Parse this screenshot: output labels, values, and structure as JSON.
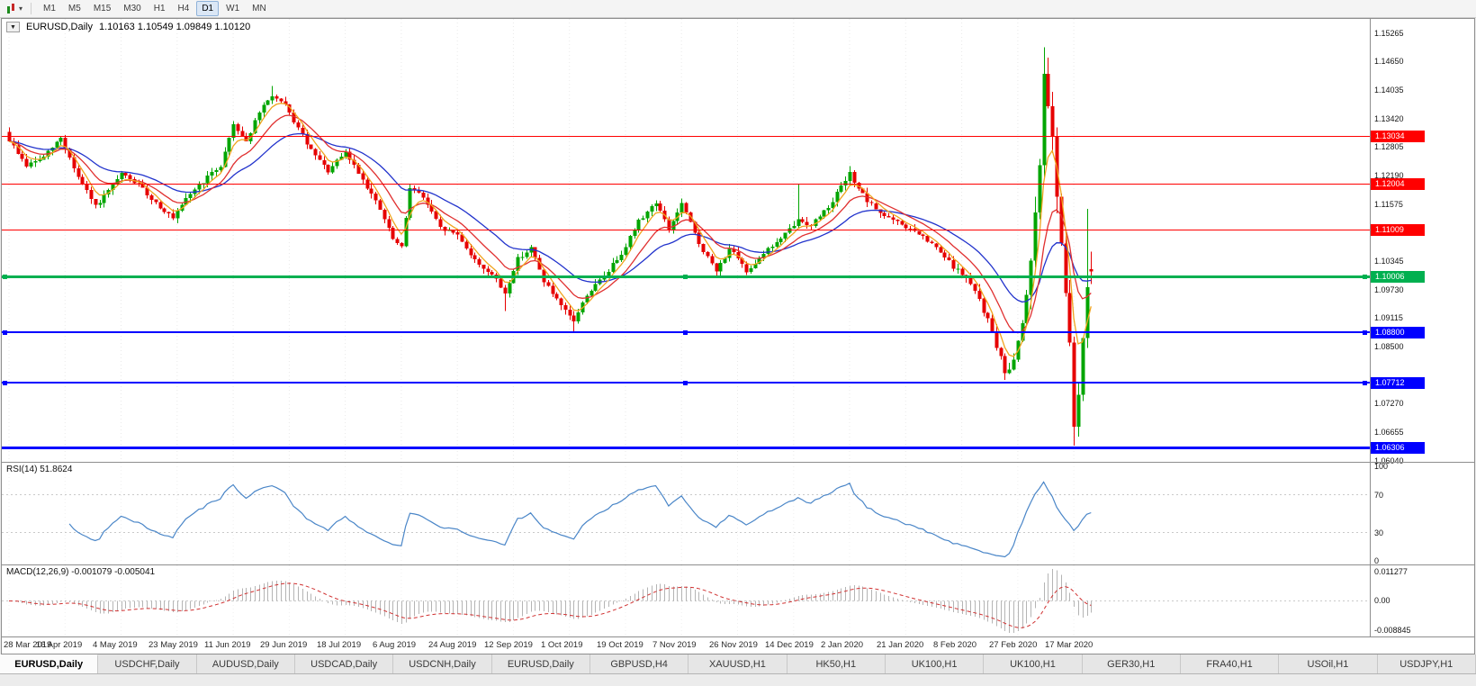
{
  "toolbar": {
    "chart_type_tooltip": "Candlesticks",
    "timeframes": [
      "M1",
      "M5",
      "M15",
      "M30",
      "H1",
      "H4",
      "D1",
      "W1",
      "MN"
    ],
    "active_timeframe": "D1"
  },
  "chart": {
    "title": "EURUSD,Daily",
    "ohlc": "1.10163 1.10549 1.09849 1.10120",
    "collapse_glyph": "▼",
    "colors": {
      "up": "#00a500",
      "down": "#e60000",
      "ma_fast": "#f0a41e",
      "ma_mid": "#e03030",
      "ma_slow": "#2233cc",
      "rsi": "#4a86c8",
      "macd_hist": "#b4b4b4",
      "macd_signal": "#d03030",
      "line_red": "#ff0000",
      "line_green": "#00b050",
      "line_blue": "#0000ff"
    }
  },
  "price_axis": {
    "ticks": [
      "1.15265",
      "1.14650",
      "1.14035",
      "1.13420",
      "1.12805",
      "1.12190",
      "1.11575",
      "1.10960",
      "1.10345",
      "1.09730",
      "1.09115",
      "1.08500",
      "1.07885",
      "1.07270",
      "1.06655",
      "1.06040"
    ]
  },
  "horizontal_lines": [
    {
      "label": "1.13034",
      "price": 1.13034,
      "color": "#ff0000",
      "thickness": 1,
      "selected": false
    },
    {
      "label": "1.12004",
      "price": 1.12004,
      "color": "#ff0000",
      "thickness": 1,
      "selected": false
    },
    {
      "label": "1.11009",
      "price": 1.11009,
      "color": "#ff0000",
      "thickness": 1,
      "selected": false
    },
    {
      "label": "1.10006",
      "price": 1.10006,
      "color": "#00b050",
      "thickness": 3,
      "selected": true
    },
    {
      "label": "1.08800",
      "price": 1.088,
      "color": "#0000ff",
      "thickness": 2,
      "selected": true
    },
    {
      "label": "1.07712",
      "price": 1.07712,
      "color": "#0000ff",
      "thickness": 2,
      "selected": true
    },
    {
      "label": "1.06306",
      "price": 1.06306,
      "color": "#0000ff",
      "thickness": 3,
      "selected": false
    }
  ],
  "indicators": {
    "rsi": {
      "title": "RSI(14)",
      "value": "51.8624",
      "axis_ticks": [
        "100",
        "70",
        "30",
        "0"
      ],
      "levels": [
        70,
        30
      ]
    },
    "macd": {
      "title": "MACD(12,26,9)",
      "values": "-0.001079 -0.005041",
      "axis_ticks": [
        "0.011277",
        "0.00",
        "-0.008845"
      ]
    }
  },
  "time_axis": {
    "dates": [
      "28 Mar 2019",
      "16 Apr 2019",
      "4 May 2019",
      "23 May 2019",
      "11 Jun 2019",
      "29 Jun 2019",
      "18 Jul 2019",
      "6 Aug 2019",
      "24 Aug 2019",
      "12 Sep 2019",
      "1 Oct 2019",
      "19 Oct 2019",
      "7 Nov 2019",
      "26 Nov 2019",
      "14 Dec 2019",
      "2 Jan 2020",
      "21 Jan 2020",
      "8 Feb 2020",
      "27 Feb 2020",
      "17 Mar 2020"
    ]
  },
  "tabs": [
    {
      "label": "EURUSD,Daily",
      "active": true
    },
    {
      "label": "USDCHF,Daily",
      "active": false
    },
    {
      "label": "AUDUSD,Daily",
      "active": false
    },
    {
      "label": "USDCAD,Daily",
      "active": false
    },
    {
      "label": "USDCNH,Daily",
      "active": false
    },
    {
      "label": "EURUSD,Daily",
      "active": false
    },
    {
      "label": "GBPUSD,H4",
      "active": false
    },
    {
      "label": "XAUUSD,H1",
      "active": false
    },
    {
      "label": "HK50,H1",
      "active": false
    },
    {
      "label": "UK100,H1",
      "active": false
    },
    {
      "label": "UK100,H1",
      "active": false
    },
    {
      "label": "GER30,H1",
      "active": false
    },
    {
      "label": "FRA40,H1",
      "active": false
    },
    {
      "label": "USOil,H1",
      "active": false
    },
    {
      "label": "USDJPY,H1",
      "active": false
    }
  ],
  "chart_data": {
    "type": "candlestick",
    "symbol": "EURUSD",
    "timeframe": "Daily",
    "bars": 252,
    "visible_range": [
      "28 Mar 2019",
      "27 Mar 2020"
    ],
    "price_range": {
      "min": 1.0605,
      "max": 1.1545
    },
    "last_bar": {
      "open": 1.10163,
      "high": 1.10549,
      "low": 1.09849,
      "close": 1.1012
    },
    "close_anchors": [
      [
        0,
        1.1295
      ],
      [
        4,
        1.124
      ],
      [
        8,
        1.1258
      ],
      [
        12,
        1.13
      ],
      [
        16,
        1.1215
      ],
      [
        20,
        1.1152
      ],
      [
        23,
        1.1185
      ],
      [
        26,
        1.1222
      ],
      [
        30,
        1.1198
      ],
      [
        34,
        1.116
      ],
      [
        38,
        1.1125
      ],
      [
        42,
        1.118
      ],
      [
        46,
        1.1215
      ],
      [
        49,
        1.124
      ],
      [
        52,
        1.133
      ],
      [
        55,
        1.1292
      ],
      [
        58,
        1.1355
      ],
      [
        61,
        1.1392
      ],
      [
        64,
        1.1368
      ],
      [
        67,
        1.132
      ],
      [
        70,
        1.1272
      ],
      [
        74,
        1.1228
      ],
      [
        78,
        1.1268
      ],
      [
        82,
        1.1212
      ],
      [
        86,
        1.1145
      ],
      [
        89,
        1.1082
      ],
      [
        91,
        1.1062
      ],
      [
        93,
        1.1195
      ],
      [
        96,
        1.1172
      ],
      [
        100,
        1.1105
      ],
      [
        104,
        1.1092
      ],
      [
        108,
        1.1035
      ],
      [
        112,
        1.1005
      ],
      [
        115,
        1.0965
      ],
      [
        118,
        1.104
      ],
      [
        121,
        1.1062
      ],
      [
        124,
        1.0992
      ],
      [
        128,
        1.0935
      ],
      [
        131,
        1.0905
      ],
      [
        134,
        1.0962
      ],
      [
        138,
        1.1002
      ],
      [
        142,
        1.1052
      ],
      [
        146,
        1.112
      ],
      [
        150,
        1.1162
      ],
      [
        153,
        1.1102
      ],
      [
        156,
        1.1158
      ],
      [
        160,
        1.1072
      ],
      [
        164,
        1.1012
      ],
      [
        167,
        1.1062
      ],
      [
        171,
        1.1012
      ],
      [
        175,
        1.1052
      ],
      [
        179,
        1.1082
      ],
      [
        183,
        1.1122
      ],
      [
        186,
        1.1112
      ],
      [
        190,
        1.1152
      ],
      [
        195,
        1.1222
      ],
      [
        199,
        1.1162
      ],
      [
        203,
        1.1132
      ],
      [
        207,
        1.1112
      ],
      [
        211,
        1.1092
      ],
      [
        215,
        1.1062
      ],
      [
        219,
        1.1022
      ],
      [
        222,
        1.0998
      ],
      [
        225,
        1.0952
      ],
      [
        228,
        1.0882
      ],
      [
        231,
        1.0792
      ],
      [
        233,
        1.0822
      ],
      [
        235,
        1.0905
      ],
      [
        237,
        1.1032
      ],
      [
        239,
        1.1255
      ],
      [
        240,
        1.1425
      ],
      [
        241,
        1.1382
      ],
      [
        242,
        1.1302
      ],
      [
        243,
        1.1182
      ],
      [
        244,
        1.108
      ],
      [
        245,
        1.0952
      ],
      [
        246,
        1.0852
      ],
      [
        247,
        1.0672
      ],
      [
        248,
        1.0748
      ],
      [
        249,
        1.0868
      ],
      [
        250,
        1.0988
      ],
      [
        251,
        1.1012
      ]
    ],
    "forced_bars": [
      {
        "i": 61,
        "high": 1.1412
      },
      {
        "i": 115,
        "low": 1.0926
      },
      {
        "i": 131,
        "low": 1.0879
      },
      {
        "i": 183,
        "high": 1.12
      },
      {
        "i": 195,
        "high": 1.1239
      },
      {
        "i": 231,
        "low": 1.0778
      },
      {
        "i": 240,
        "high": 1.1495
      },
      {
        "i": 247,
        "low": 1.0636
      },
      {
        "i": 250,
        "high": 1.1147
      },
      {
        "i": 251,
        "open": 1.10163,
        "high": 1.10549,
        "low": 1.09849,
        "close": 1.1012
      }
    ],
    "moving_averages": [
      {
        "period": 26,
        "color": "#2233cc"
      },
      {
        "period": 12,
        "color": "#e03030"
      },
      {
        "period": 5,
        "color": "#f0a41e"
      }
    ],
    "render_params": {
      "default": {
        "body": 0.0009,
        "wick": 0.0011
      },
      "zones": [
        {
          "from": 225,
          "body": 0.0016,
          "wick": 0.0018
        },
        {
          "from": 237,
          "body": 0.0028,
          "wick": 0.0038
        }
      ]
    }
  }
}
